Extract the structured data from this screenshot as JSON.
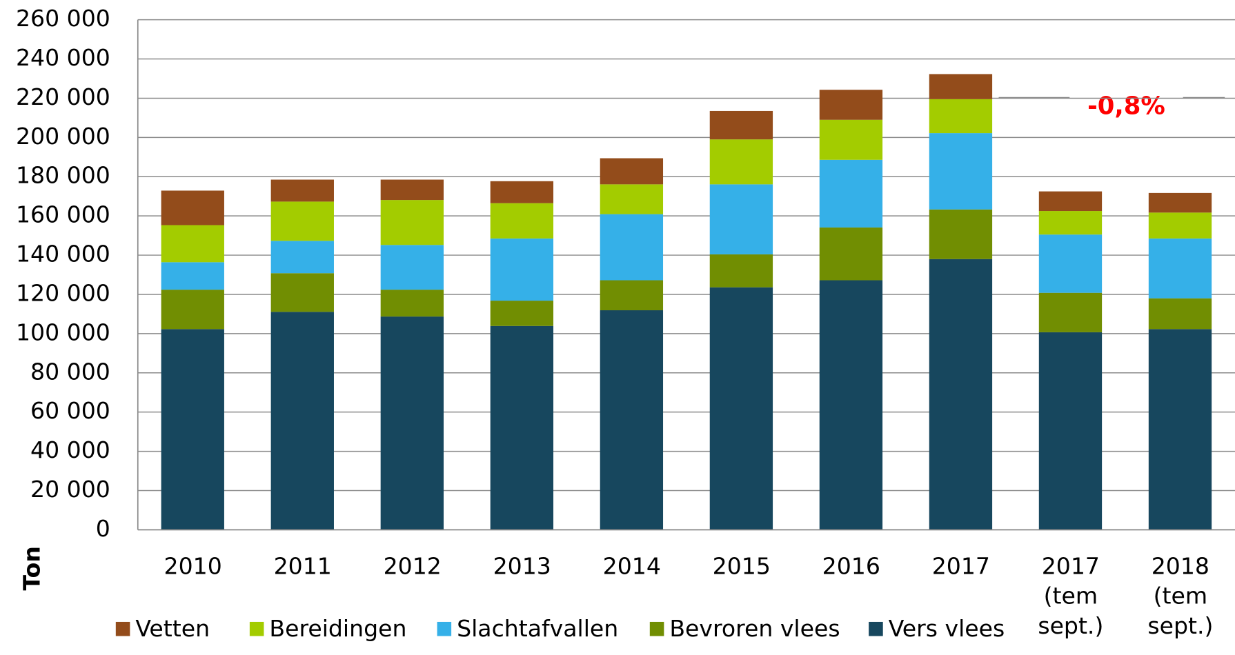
{
  "chart_data": {
    "type": "stacked_bar",
    "y_axis_label": "Ton",
    "annotation": "-0,8%",
    "categories": [
      "2010",
      "2011",
      "2012",
      "2013",
      "2014",
      "2015",
      "2016",
      "2017",
      "2017 (tem sept.)",
      "2018 (tem sept.)"
    ],
    "series": [
      {
        "name": "Vers vlees",
        "color": "#17475e",
        "values": [
          102300,
          111100,
          108700,
          103900,
          111900,
          123600,
          127200,
          138000,
          100700,
          102300
        ]
      },
      {
        "name": "Bevroren vlees",
        "color": "#718e02",
        "values": [
          20100,
          19700,
          13700,
          12900,
          15300,
          16800,
          26900,
          25300,
          20100,
          15700
        ]
      },
      {
        "name": "Slachtafvallen",
        "color": "#35b0e8",
        "values": [
          14000,
          16500,
          22800,
          31700,
          33700,
          35700,
          34500,
          38900,
          29700,
          30500
        ]
      },
      {
        "name": "Bereidingen",
        "color": "#a3cc00",
        "values": [
          18900,
          20000,
          22900,
          18000,
          15200,
          22900,
          20400,
          17300,
          12000,
          13200
        ]
      },
      {
        "name": "Vetten",
        "color": "#934c1b",
        "values": [
          17600,
          11200,
          10400,
          11200,
          13300,
          14500,
          15300,
          12800,
          10000,
          10000
        ]
      }
    ],
    "ylim": [
      0,
      260000
    ],
    "yticks": [
      0,
      {
        "value": 20000,
        "label": "20 000"
      },
      {
        "value": 40000,
        "label": "40 000"
      },
      {
        "value": 60000,
        "label": "60 000"
      },
      {
        "value": 80000,
        "label": "80 000"
      },
      {
        "value": 100000,
        "label": "100 000"
      },
      {
        "value": 120000,
        "label": "120 000"
      },
      {
        "value": 140000,
        "label": "140 000"
      },
      {
        "value": 160000,
        "label": "160 000"
      },
      {
        "value": 180000,
        "label": "180 000"
      },
      {
        "value": 200000,
        "label": "200 000"
      },
      {
        "value": 220000,
        "label": "220 000"
      },
      {
        "value": 240000,
        "label": "240 000"
      },
      {
        "value": 260000,
        "label": "260 000"
      }
    ],
    "grid": true,
    "legend": "bottom"
  }
}
